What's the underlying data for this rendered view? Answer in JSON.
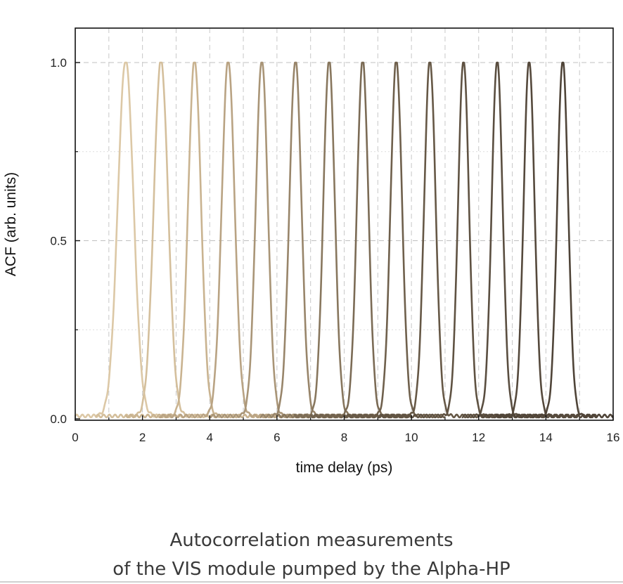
{
  "chart_data": {
    "type": "line",
    "title": "",
    "xlabel": "time delay (ps)",
    "ylabel": "ACF (arb. units)",
    "xlim": [
      0,
      16
    ],
    "ylim": [
      0,
      1.0
    ],
    "xticks": [
      "0",
      "2",
      "4",
      "6",
      "8",
      "10",
      "12",
      "14",
      "16"
    ],
    "yticks": [
      "0.0",
      "0.5",
      "1.0"
    ],
    "grid": true,
    "legend": "none",
    "series": [
      {
        "peak_x": 1.5,
        "fwhm_ps": 0.55,
        "baseline_start": 0.0,
        "baseline_end": 3.2,
        "color": "#dcc8a6"
      },
      {
        "peak_x": 2.55,
        "fwhm_ps": 0.5,
        "baseline_start": 0.6,
        "baseline_end": 4.2,
        "color": "#d4bf9c"
      },
      {
        "peak_x": 3.55,
        "fwhm_ps": 0.45,
        "baseline_start": 1.5,
        "baseline_end": 6.0,
        "color": "#c9b390"
      },
      {
        "peak_x": 4.55,
        "fwhm_ps": 0.45,
        "baseline_start": 2.5,
        "baseline_end": 7.0,
        "color": "#b9a383"
      },
      {
        "peak_x": 5.55,
        "fwhm_ps": 0.42,
        "baseline_start": 4.0,
        "baseline_end": 8.0,
        "color": "#a99577"
      },
      {
        "peak_x": 6.55,
        "fwhm_ps": 0.42,
        "baseline_start": 5.5,
        "baseline_end": 9.0,
        "color": "#98856a"
      },
      {
        "peak_x": 7.55,
        "fwhm_ps": 0.4,
        "baseline_start": 6.0,
        "baseline_end": 10.0,
        "color": "#88775e"
      },
      {
        "peak_x": 8.55,
        "fwhm_ps": 0.4,
        "baseline_start": 6.5,
        "baseline_end": 10.0,
        "color": "#7b6b55"
      },
      {
        "peak_x": 9.55,
        "fwhm_ps": 0.4,
        "baseline_start": 7.0,
        "baseline_end": 11.0,
        "color": "#6f604c"
      },
      {
        "peak_x": 10.55,
        "fwhm_ps": 0.4,
        "baseline_start": 8.0,
        "baseline_end": 13.0,
        "color": "#665846"
      },
      {
        "peak_x": 11.55,
        "fwhm_ps": 0.38,
        "baseline_start": 9.0,
        "baseline_end": 14.0,
        "color": "#5f5242"
      },
      {
        "peak_x": 12.55,
        "fwhm_ps": 0.38,
        "baseline_start": 11.5,
        "baseline_end": 15.0,
        "color": "#5a4e40"
      },
      {
        "peak_x": 13.5,
        "fwhm_ps": 0.38,
        "baseline_start": 12.0,
        "baseline_end": 15.5,
        "color": "#55493c"
      },
      {
        "peak_x": 14.5,
        "fwhm_ps": 0.38,
        "baseline_start": 12.5,
        "baseline_end": 16.0,
        "color": "#4f4438"
      }
    ]
  },
  "caption": {
    "line1": "Autocorrelation measurements",
    "line2": "of the VIS module pumped by the Alpha-HP"
  }
}
